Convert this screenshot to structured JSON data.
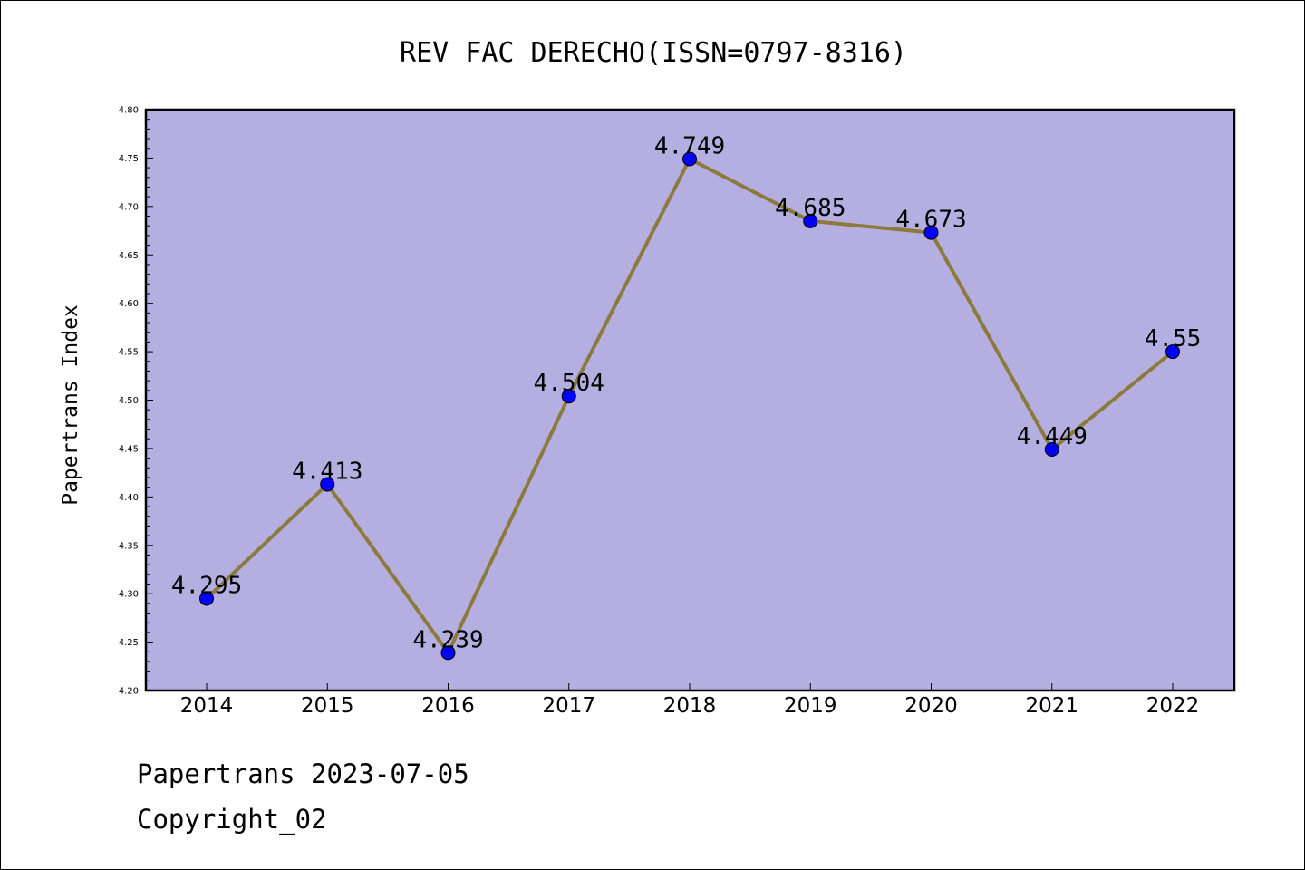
{
  "chart_data": {
    "type": "line",
    "title": "REV FAC DERECHO(ISSN=0797-8316)",
    "xlabel": "",
    "ylabel": "Papertrans Index",
    "categories": [
      "2014",
      "2015",
      "2016",
      "2017",
      "2018",
      "2019",
      "2020",
      "2021",
      "2022"
    ],
    "series": [
      {
        "values": [
          4.295,
          4.413,
          4.239,
          4.504,
          4.749,
          4.685,
          4.673,
          4.449,
          4.55
        ],
        "labels": [
          "4.295",
          "4.413",
          "4.239",
          "4.504",
          "4.749",
          "4.685",
          "4.673",
          "4.449",
          "4.55"
        ]
      }
    ],
    "ylim": [
      4.2,
      4.8
    ],
    "yticks": [
      "4.20",
      "4.25",
      "4.30",
      "4.35",
      "4.40",
      "4.45",
      "4.50",
      "4.55",
      "4.60",
      "4.65",
      "4.70",
      "4.75",
      "4.80"
    ],
    "grid": false,
    "legend": "none",
    "colors": {
      "plot_background": "#b5afe1",
      "line": "#8c7a3c",
      "marker": "#0000ff"
    }
  },
  "footer": {
    "line1": "Papertrans 2023-07-05",
    "line2": "Copyright_02"
  }
}
